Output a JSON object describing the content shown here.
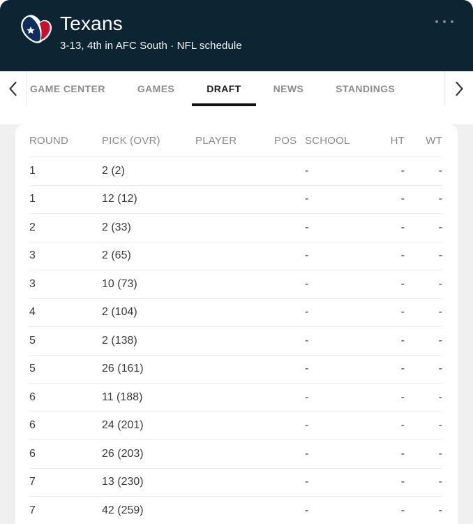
{
  "header": {
    "team_name": "Texans",
    "record_line": "3-13, 4th in AFC South · NFL schedule",
    "bg_color": "#0d2433",
    "logo": {
      "name": "texans-bull-logo",
      "navy": "#0e2f5e",
      "red": "#c8102e",
      "white": "#ffffff"
    },
    "more_icon": "more-options-ellipsis"
  },
  "tabs": {
    "scroll_left_icon": "chevron-left",
    "scroll_right_icon": "chevron-right",
    "active_color": "#111111",
    "inactive_color": "#8c8c8c",
    "items": [
      {
        "label": "GAME CENTER",
        "active": false
      },
      {
        "label": "GAMES",
        "active": false
      },
      {
        "label": "DRAFT",
        "active": true
      },
      {
        "label": "NEWS",
        "active": false
      },
      {
        "label": "STANDINGS",
        "active": false
      }
    ]
  },
  "draft_table": {
    "columns": [
      "ROUND",
      "PICK (OVR)",
      "PLAYER",
      "POS",
      "SCHOOL",
      "HT",
      "WT"
    ],
    "rows": [
      {
        "round": "1",
        "pick": "2 (2)",
        "player": "",
        "pos": "",
        "school": "-",
        "ht": "-",
        "wt": "-"
      },
      {
        "round": "1",
        "pick": "12 (12)",
        "player": "",
        "pos": "",
        "school": "-",
        "ht": "-",
        "wt": "-"
      },
      {
        "round": "2",
        "pick": "2 (33)",
        "player": "",
        "pos": "",
        "school": "-",
        "ht": "-",
        "wt": "-"
      },
      {
        "round": "3",
        "pick": "2 (65)",
        "player": "",
        "pos": "",
        "school": "-",
        "ht": "-",
        "wt": "-"
      },
      {
        "round": "3",
        "pick": "10 (73)",
        "player": "",
        "pos": "",
        "school": "-",
        "ht": "-",
        "wt": "-"
      },
      {
        "round": "4",
        "pick": "2 (104)",
        "player": "",
        "pos": "",
        "school": "-",
        "ht": "-",
        "wt": "-"
      },
      {
        "round": "5",
        "pick": "2 (138)",
        "player": "",
        "pos": "",
        "school": "-",
        "ht": "-",
        "wt": "-"
      },
      {
        "round": "5",
        "pick": "26 (161)",
        "player": "",
        "pos": "",
        "school": "-",
        "ht": "-",
        "wt": "-"
      },
      {
        "round": "6",
        "pick": "11 (188)",
        "player": "",
        "pos": "",
        "school": "-",
        "ht": "-",
        "wt": "-"
      },
      {
        "round": "6",
        "pick": "24 (201)",
        "player": "",
        "pos": "",
        "school": "-",
        "ht": "-",
        "wt": "-"
      },
      {
        "round": "6",
        "pick": "26 (203)",
        "player": "",
        "pos": "",
        "school": "-",
        "ht": "-",
        "wt": "-"
      },
      {
        "round": "7",
        "pick": "13 (230)",
        "player": "",
        "pos": "",
        "school": "-",
        "ht": "-",
        "wt": "-"
      },
      {
        "round": "7",
        "pick": "42 (259)",
        "player": "",
        "pos": "",
        "school": "-",
        "ht": "-",
        "wt": "-"
      }
    ]
  }
}
